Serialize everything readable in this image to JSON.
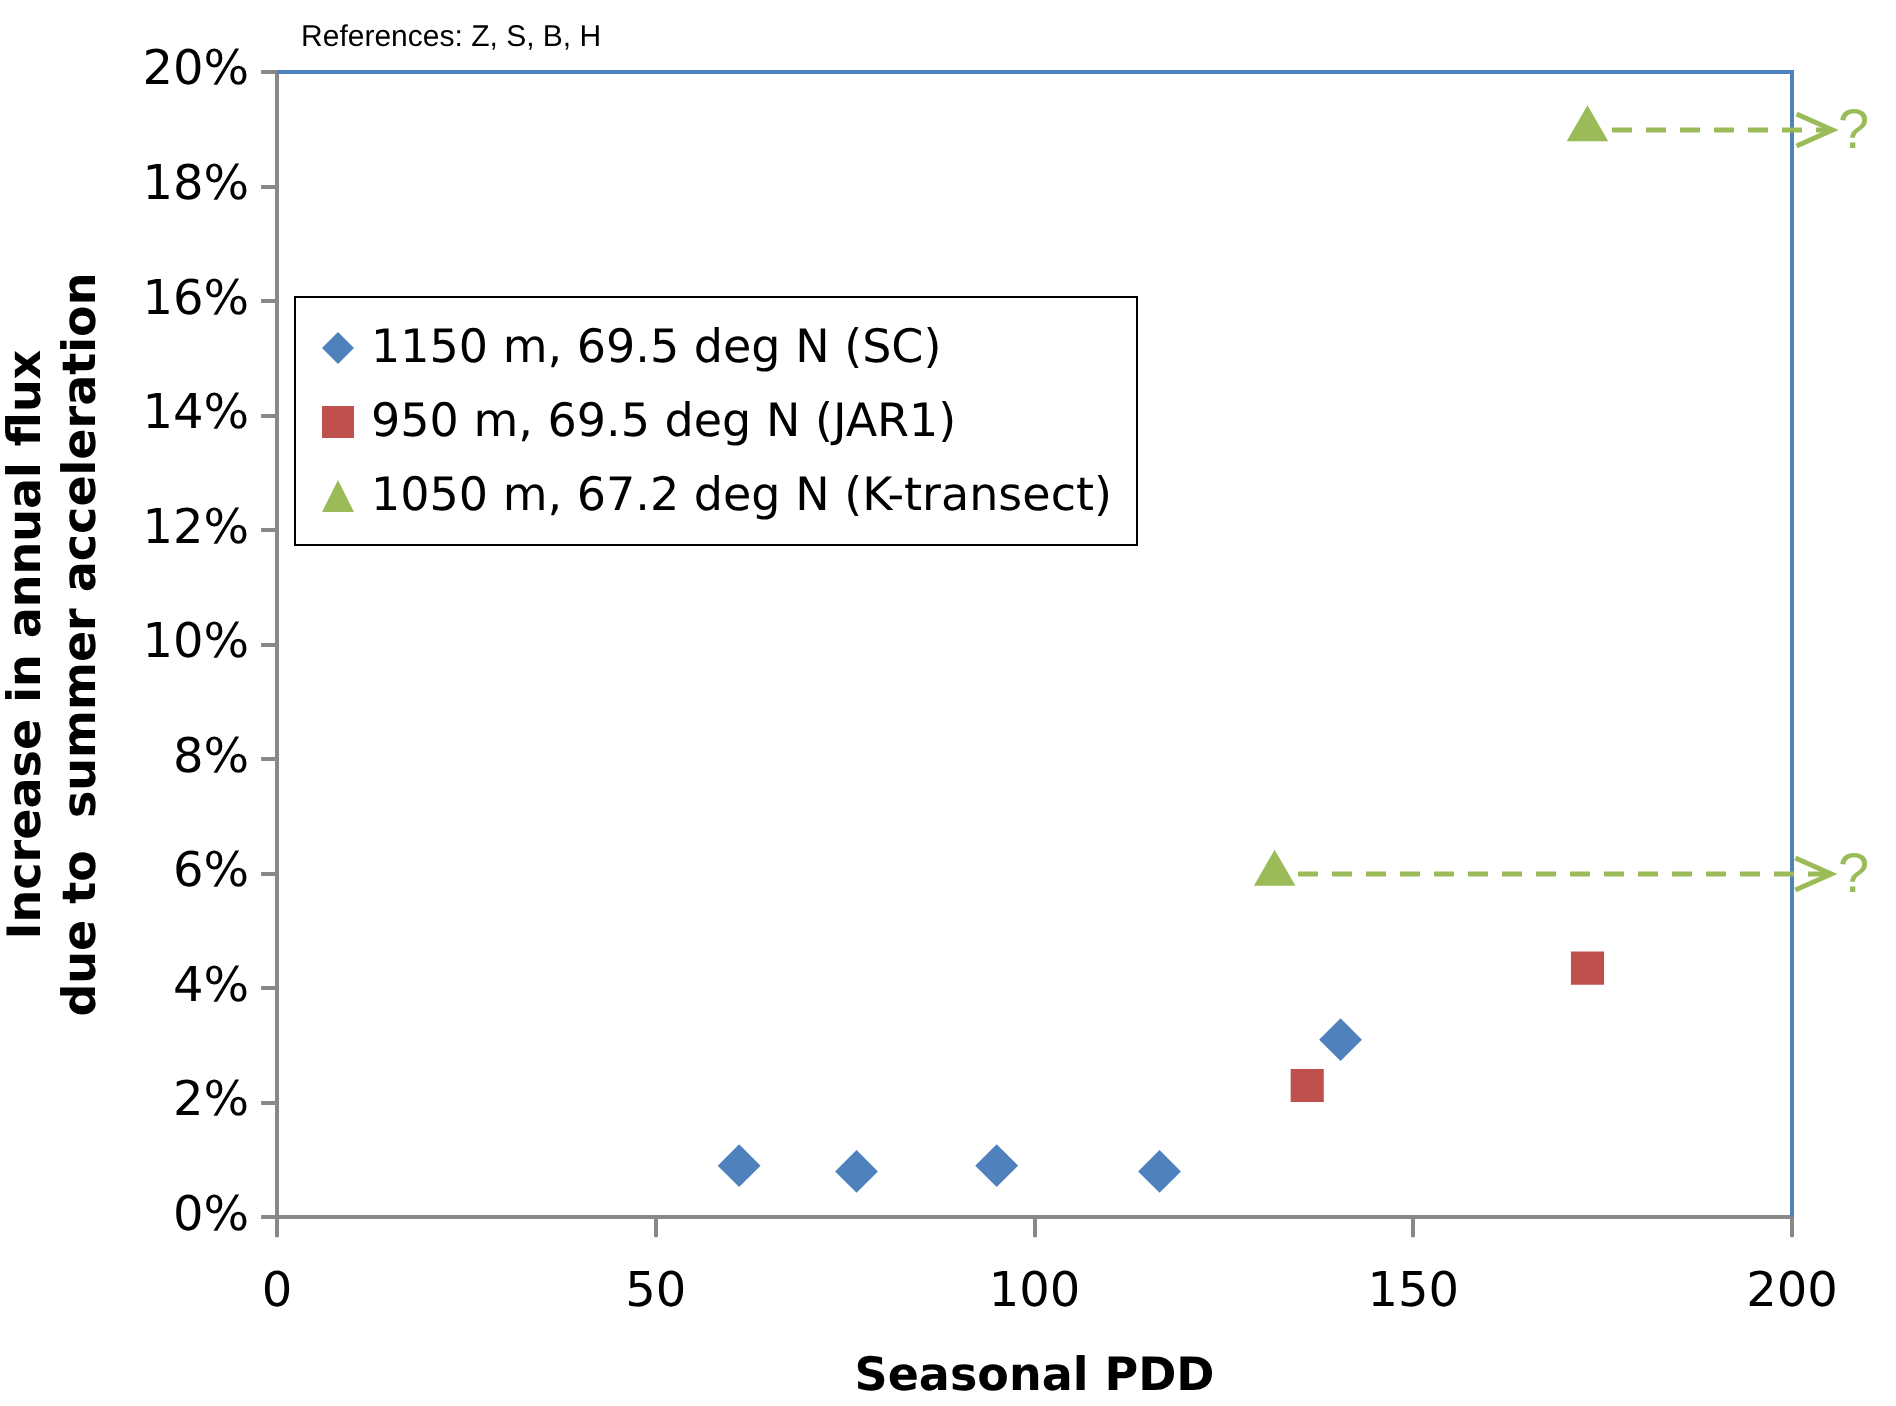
{
  "chart_data": {
    "type": "scatter",
    "xlabel": "Seasonal PDD",
    "ylabel": "Increase in annual flux\ndue to  summer acceleration",
    "annotations": [
      "References: Z, S, B, H",
      "?",
      "?"
    ],
    "series": [
      {
        "name": "1150 m, 69.5 deg N (SC)",
        "color": "#4f81bd",
        "marker": "diamond",
        "x": [
          61,
          76.5,
          95,
          116.5,
          140.4
        ],
        "values": [
          0.9,
          0.8,
          0.9,
          0.8,
          3.1
        ]
      },
      {
        "name": "950 m, 69.5 deg N (JAR1)",
        "color": "#c0504d",
        "marker": "square",
        "x": [
          136,
          173
        ],
        "values": [
          2.3,
          4.35
        ]
      },
      {
        "name": "1050 m, 67.2 deg N (K-transect)",
        "color": "#9bbb59",
        "marker": "triangle",
        "x": [
          131.7,
          173
        ],
        "values": [
          6.0,
          19.0
        ]
      }
    ],
    "xlim": [
      0,
      200
    ],
    "xticks": [
      0,
      50,
      100,
      150,
      200
    ],
    "ylim": [
      0,
      20
    ],
    "yticks": [
      {
        "value": 0,
        "label": "0%"
      },
      {
        "value": 2,
        "label": "2%"
      },
      {
        "value": 4,
        "label": "4%"
      },
      {
        "value": 6,
        "label": "6%"
      },
      {
        "value": 8,
        "label": "8%"
      },
      {
        "value": 10,
        "label": "10%"
      },
      {
        "value": 12,
        "label": "12%"
      },
      {
        "value": 14,
        "label": "14%"
      },
      {
        "value": 16,
        "label": "16%"
      },
      {
        "value": 18,
        "label": "18%"
      },
      {
        "value": 20,
        "label": "20%"
      }
    ],
    "grid": false,
    "legend": "top left"
  }
}
